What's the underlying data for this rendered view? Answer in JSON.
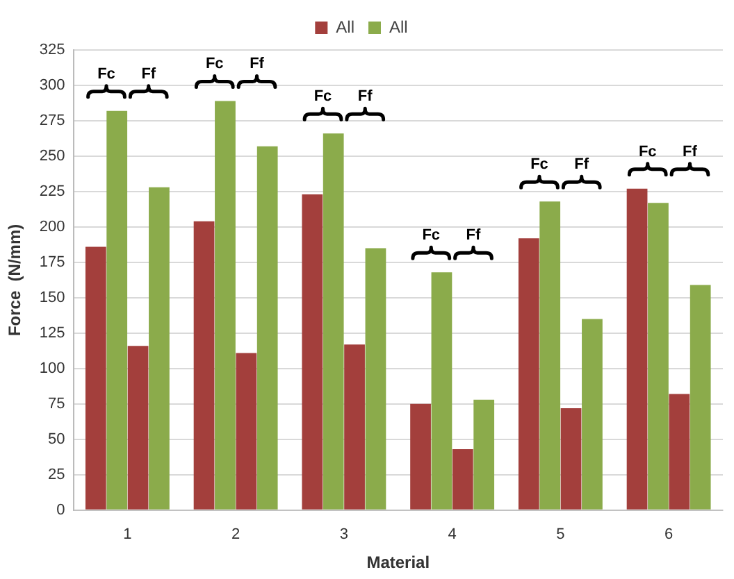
{
  "chart_data": {
    "type": "bar",
    "xlabel": "Material",
    "ylabel": "Force  (N/mm)",
    "categories": [
      "1",
      "2",
      "3",
      "4",
      "5",
      "6"
    ],
    "series": [
      {
        "name": "All",
        "color": "#a33f3c",
        "values": [
          186,
          204,
          223,
          75,
          192,
          227
        ]
      },
      {
        "name": "All",
        "color": "#8bab4b",
        "values": [
          282,
          289,
          266,
          168,
          218,
          217
        ]
      },
      {
        "color": "#a33f3c",
        "values": [
          116,
          111,
          117,
          43,
          72,
          82
        ]
      },
      {
        "color": "#8bab4b",
        "values": [
          228,
          257,
          185,
          78,
          135,
          159
        ]
      }
    ],
    "ylim": [
      0,
      325
    ],
    "yticks": [
      0,
      25,
      50,
      75,
      100,
      125,
      150,
      175,
      200,
      225,
      250,
      275,
      300,
      325
    ],
    "grid": "y",
    "legend": "top",
    "annotations": [
      "Fc",
      "Ff",
      "Fc",
      "Ff",
      "Fc",
      "Ff",
      "Fc",
      "Ff",
      "Fc",
      "Ff",
      "Fc",
      "Ff"
    ]
  }
}
